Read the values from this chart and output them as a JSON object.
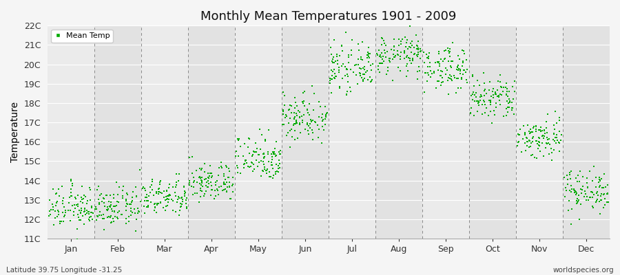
{
  "title": "Monthly Mean Temperatures 1901 - 2009",
  "ylabel": "Temperature",
  "footer_left": "Latitude 39.75 Longitude -31.25",
  "footer_right": "worldspecies.org",
  "legend_label": "Mean Temp",
  "dot_color": "#00aa00",
  "ylim": [
    11,
    22
  ],
  "ytick_labels": [
    "11C",
    "12C",
    "13C",
    "14C",
    "15C",
    "16C",
    "17C",
    "18C",
    "19C",
    "20C",
    "21C",
    "22C"
  ],
  "month_names": [
    "Jan",
    "Feb",
    "Mar",
    "Apr",
    "May",
    "Jun",
    "Jul",
    "Aug",
    "Sep",
    "Oct",
    "Nov",
    "Dec"
  ],
  "monthly_mean_temps": [
    12.6,
    12.6,
    13.1,
    13.9,
    15.2,
    17.3,
    19.8,
    20.5,
    19.8,
    18.2,
    16.2,
    13.5
  ],
  "monthly_std_temps": [
    0.55,
    0.5,
    0.48,
    0.5,
    0.6,
    0.65,
    0.55,
    0.5,
    0.55,
    0.6,
    0.55,
    0.55
  ],
  "n_years": 109,
  "marker_size": 4,
  "seed": 12345,
  "band_colors": [
    "#ebebeb",
    "#e2e2e2"
  ],
  "grid_line_color": "#ffffff",
  "dashed_line_color": "#888888",
  "fig_bg": "#f5f5f5"
}
